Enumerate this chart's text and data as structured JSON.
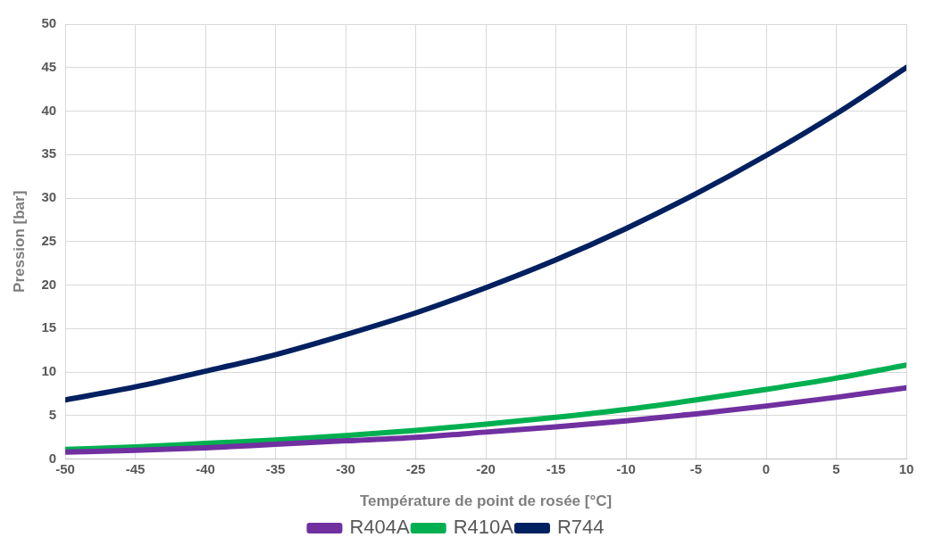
{
  "chart_data": {
    "type": "line",
    "xlabel": "Température de point de rosée [°C]",
    "ylabel": "Pression [bar]",
    "x": [
      -50,
      -45,
      -40,
      -35,
      -30,
      -25,
      -20,
      -15,
      -10,
      -5,
      0,
      5,
      10
    ],
    "xlim": [
      -50,
      10
    ],
    "xticks": [
      -50,
      -45,
      -40,
      -35,
      -30,
      -25,
      -20,
      -15,
      -10,
      -5,
      0,
      5,
      10
    ],
    "ylim": [
      0,
      50
    ],
    "yticks": [
      0,
      5,
      10,
      15,
      20,
      25,
      30,
      35,
      40,
      45,
      50
    ],
    "grid": true,
    "legend": "bottom",
    "marker": "none",
    "line_style": "solid",
    "series": [
      {
        "name": "R404A",
        "color": "#7030a0",
        "values": [
          0.8,
          1.0,
          1.3,
          1.7,
          2.1,
          2.5,
          3.1,
          3.7,
          4.4,
          5.2,
          6.1,
          7.1,
          8.2
        ]
      },
      {
        "name": "R410A",
        "color": "#00b050",
        "values": [
          1.1,
          1.4,
          1.8,
          2.2,
          2.7,
          3.3,
          4.0,
          4.8,
          5.7,
          6.8,
          8.0,
          9.3,
          10.8
        ]
      },
      {
        "name": "R744",
        "color": "#002060",
        "values": [
          6.8,
          8.3,
          10.1,
          12.0,
          14.3,
          16.8,
          19.7,
          22.9,
          26.5,
          30.5,
          34.9,
          39.7,
          45.0
        ]
      }
    ]
  }
}
